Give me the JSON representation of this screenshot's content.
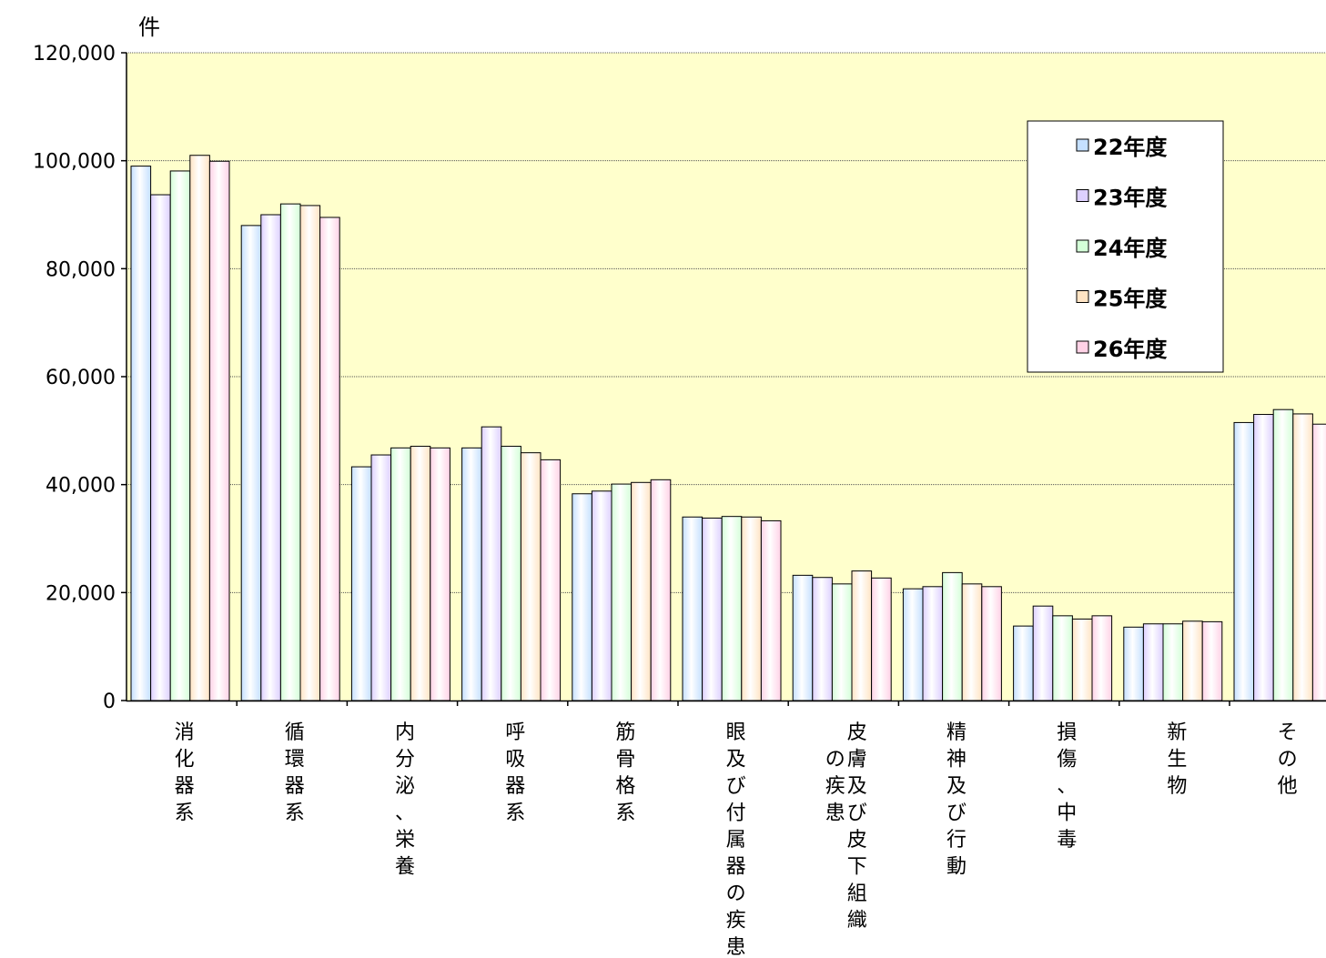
{
  "chart_data": {
    "type": "bar",
    "unit_label": "件",
    "ylim": [
      0,
      120000
    ],
    "y_ticks": [
      "0",
      "20,000",
      "40,000",
      "60,000",
      "80,000",
      "100,000",
      "120,000"
    ],
    "y_tick_values": [
      0,
      20000,
      40000,
      60000,
      80000,
      100000,
      120000
    ],
    "grid": true,
    "legend_position": "top-right",
    "plot_background": "#ffffcc",
    "categories": [
      [
        "消化器系"
      ],
      [
        "循環器系"
      ],
      [
        "内分泌、栄養"
      ],
      [
        "呼吸器系"
      ],
      [
        "筋骨格系"
      ],
      [
        "眼及び付属器の疾患"
      ],
      [
        "皮膚及び皮下組織",
        "の疾患"
      ],
      [
        "精神及び行動"
      ],
      [
        "損傷、中毒"
      ],
      [
        "新生物"
      ],
      [
        "その他"
      ]
    ],
    "series": [
      {
        "name": "22年度",
        "color": "#c5e0ff",
        "values": [
          99000,
          88000,
          43300,
          46800,
          38300,
          34000,
          23200,
          20700,
          13800,
          13600,
          51500
        ]
      },
      {
        "name": "23年度",
        "color": "#ddd0ff",
        "values": [
          93700,
          90000,
          45500,
          50700,
          38800,
          33800,
          22800,
          21100,
          17500,
          14200,
          53000
        ]
      },
      {
        "name": "24年度",
        "color": "#d4ffd8",
        "values": [
          98100,
          92000,
          46800,
          47100,
          40100,
          34100,
          21600,
          23700,
          15700,
          14200,
          53900
        ]
      },
      {
        "name": "25年度",
        "color": "#ffe4c4",
        "values": [
          101000,
          91700,
          47100,
          45900,
          40400,
          34000,
          24000,
          21600,
          15100,
          14700,
          53100
        ]
      },
      {
        "name": "26年度",
        "color": "#ffd2e6",
        "values": [
          99900,
          89500,
          46800,
          44600,
          40900,
          33300,
          22700,
          21100,
          15700,
          14600,
          51200
        ]
      }
    ]
  }
}
